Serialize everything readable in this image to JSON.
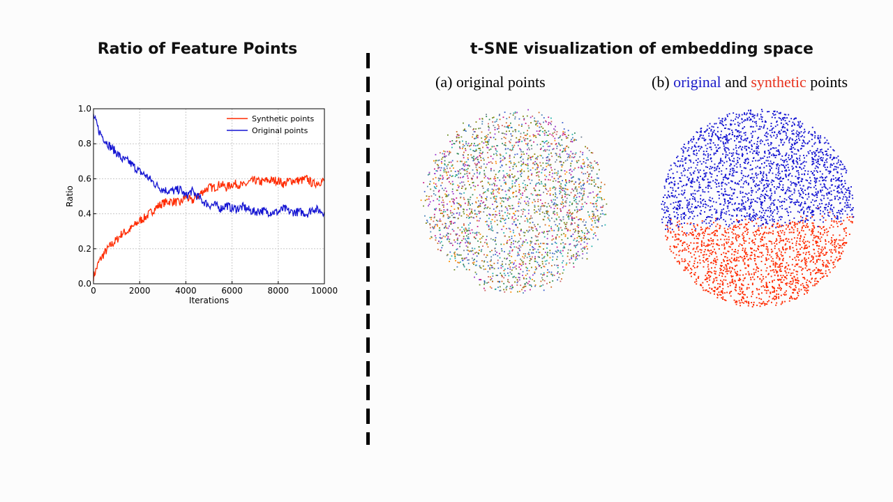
{
  "left_panel": {
    "title": "Ratio of Feature Points"
  },
  "right_panel": {
    "title": "t-SNE visualization of embedding space",
    "caption_a": "(a) original points",
    "caption_b": {
      "prefix": "(b) ",
      "word1": "original",
      "mid": " and ",
      "word2": "synthetic",
      "suffix": " points",
      "word1_color": "#1a1ac8",
      "word2_color": "#e8321e"
    }
  },
  "colors": {
    "synthetic": "#ff2a00",
    "original": "#1414d2",
    "grid": "#c8c8c8"
  },
  "chart_data": [
    {
      "type": "line",
      "title": "",
      "xlabel": "Iterations",
      "ylabel": "Ratio",
      "xlim": [
        0,
        10000
      ],
      "ylim": [
        0.0,
        1.0
      ],
      "xticks": [
        0,
        2000,
        4000,
        6000,
        8000,
        10000
      ],
      "yticks": [
        0.0,
        0.2,
        0.4,
        0.6,
        0.8,
        1.0
      ],
      "xtick_labels": [
        "0",
        "2000",
        "4000",
        "6000",
        "8000",
        "10000"
      ],
      "ytick_labels": [
        "0.0",
        "0.2",
        "0.4",
        "0.6",
        "0.8",
        "1.0"
      ],
      "grid": true,
      "legend_position": "top-right",
      "x": [
        0,
        250,
        500,
        750,
        1000,
        1250,
        1500,
        1750,
        2000,
        2250,
        2500,
        2750,
        3000,
        3250,
        3500,
        3750,
        4000,
        4250,
        4500,
        4750,
        5000,
        5250,
        5500,
        5750,
        6000,
        6250,
        6500,
        6750,
        7000,
        7250,
        7500,
        7750,
        8000,
        8250,
        8500,
        8750,
        9000,
        9250,
        9500,
        9750,
        10000
      ],
      "series": [
        {
          "name": "Synthetic points",
          "color": "#ff2a00",
          "values": [
            0.04,
            0.13,
            0.18,
            0.22,
            0.25,
            0.29,
            0.3,
            0.33,
            0.36,
            0.38,
            0.41,
            0.44,
            0.46,
            0.47,
            0.47,
            0.46,
            0.5,
            0.47,
            0.5,
            0.53,
            0.55,
            0.55,
            0.57,
            0.55,
            0.57,
            0.57,
            0.56,
            0.58,
            0.59,
            0.58,
            0.59,
            0.59,
            0.59,
            0.57,
            0.59,
            0.59,
            0.59,
            0.6,
            0.57,
            0.58,
            0.59
          ]
        },
        {
          "name": "Original points",
          "color": "#1414d2",
          "values": [
            0.96,
            0.87,
            0.82,
            0.78,
            0.75,
            0.71,
            0.7,
            0.67,
            0.64,
            0.62,
            0.59,
            0.56,
            0.54,
            0.53,
            0.53,
            0.54,
            0.5,
            0.53,
            0.5,
            0.47,
            0.45,
            0.45,
            0.43,
            0.45,
            0.43,
            0.43,
            0.44,
            0.42,
            0.41,
            0.42,
            0.41,
            0.41,
            0.41,
            0.43,
            0.41,
            0.41,
            0.41,
            0.4,
            0.43,
            0.42,
            0.41
          ]
        }
      ]
    }
  ]
}
